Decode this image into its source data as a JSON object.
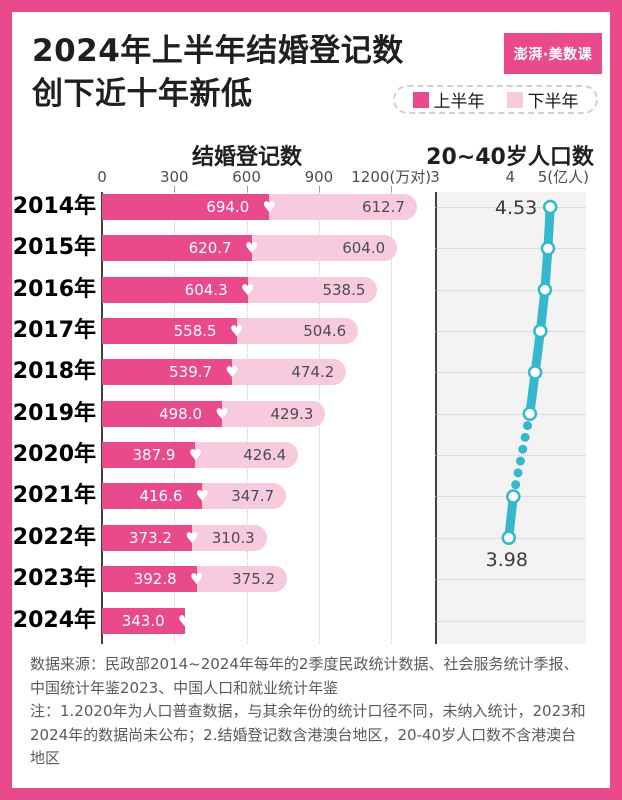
{
  "colors": {
    "frame": "#e84a8c",
    "first_half": "#e84a8c",
    "second_half": "#f8cadd",
    "population_line": "#35b8ce",
    "plot_background": "#f3f3f3"
  },
  "header": {
    "title_line1": "2024年上半年结婚登记数",
    "title_line2": "创下近十年新低",
    "logo_text": "澎湃·美数课"
  },
  "legend": {
    "items": [
      {
        "label": "上半年",
        "color": "#e84a8c"
      },
      {
        "label": "下半年",
        "color": "#f8cadd"
      }
    ]
  },
  "chart_data": [
    {
      "type": "bar",
      "title": "结婚登记数",
      "unit": "万对",
      "orientation": "horizontal-stacked",
      "x_ticks": [
        0,
        300,
        600,
        900
      ],
      "x_tick_last": "1200(万对)",
      "x_tick_last_value": 1200,
      "xlim": [
        0,
        1360
      ],
      "grid": "vertical-dotted",
      "categories": [
        "2014年",
        "2015年",
        "2016年",
        "2017年",
        "2018年",
        "2019年",
        "2020年",
        "2021年",
        "2022年",
        "2023年",
        "2024年"
      ],
      "series": [
        {
          "name": "上半年",
          "values": [
            694.0,
            620.7,
            604.3,
            558.5,
            539.7,
            498.0,
            387.9,
            416.6,
            373.2,
            392.8,
            343.0
          ]
        },
        {
          "name": "下半年",
          "values": [
            612.7,
            604.0,
            538.5,
            504.6,
            474.2,
            429.3,
            426.4,
            347.7,
            310.3,
            375.2,
            null
          ]
        }
      ],
      "marker": "white-heart-at-segment-join"
    },
    {
      "type": "line",
      "title": "20~40岁人口数",
      "unit": "亿人",
      "orientation": "vertical-years",
      "x_ticks": [
        3,
        4
      ],
      "x_tick_last": "5(亿人)",
      "x_tick_last_value": 5,
      "xlim": [
        3,
        5
      ],
      "grid": "horizontal-dotted",
      "points": [
        {
          "year": "2014年",
          "value": 4.53,
          "label": "4.53"
        },
        {
          "year": "2015年",
          "value": 4.5
        },
        {
          "year": "2016年",
          "value": 4.46
        },
        {
          "year": "2017年",
          "value": 4.4
        },
        {
          "year": "2018年",
          "value": 4.33
        },
        {
          "year": "2019年",
          "value": 4.26
        },
        {
          "year": "2020年",
          "value": null
        },
        {
          "year": "2021年",
          "value": 4.04
        },
        {
          "year": "2022年",
          "value": 3.98,
          "label": "3.98"
        },
        {
          "year": "2023年",
          "value": null
        },
        {
          "year": "2024年",
          "value": null
        }
      ],
      "dashed_segment_between": [
        "2019年",
        "2021年"
      ]
    }
  ],
  "footer": {
    "source": "数据来源：民政部2014~2024年每年的2季度民政统计数据、社会服务统计季报、中国统计年鉴2023、中国人口和就业统计年鉴",
    "note": "注：1.2020年为人口普查数据，与其余年份的统计口径不同，未纳入统计，2023和2024年的数据尚未公布；2.结婚登记数含港澳台地区，20-40岁人口数不含港澳台地区"
  }
}
